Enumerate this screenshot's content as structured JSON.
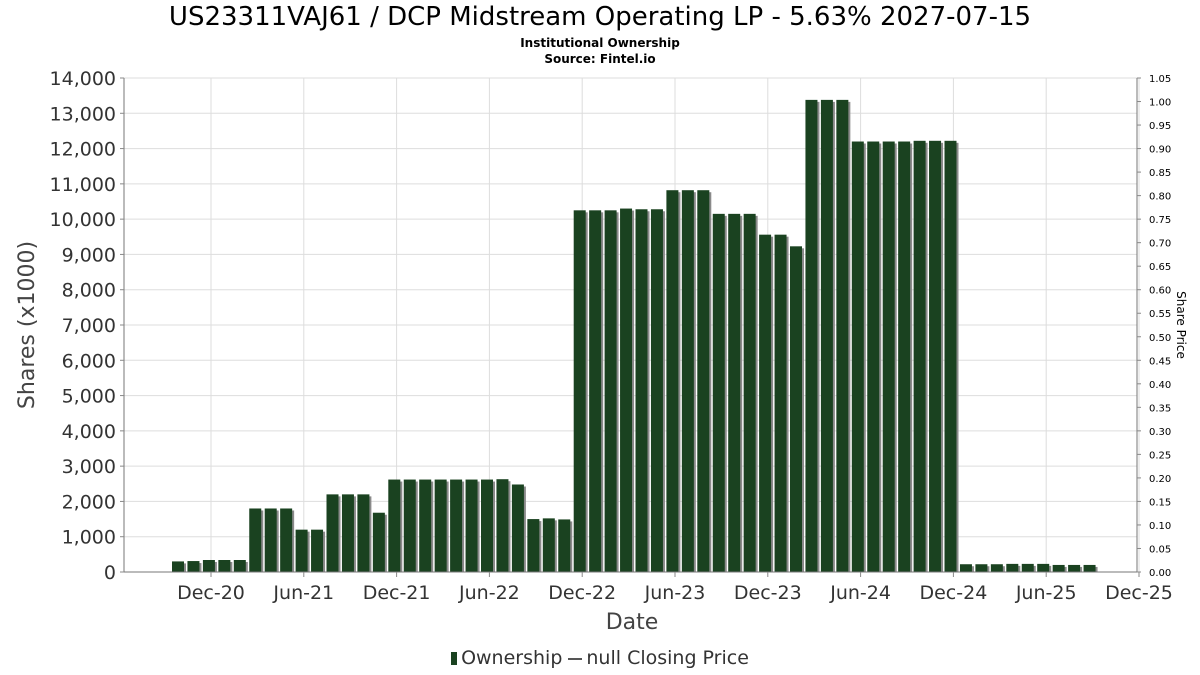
{
  "header": {
    "title": "US23311VAJ61 / DCP Midstream Operating LP - 5.63% 2027-07-15",
    "subtitle": "Institutional Ownership",
    "source": "Source: Fintel.io"
  },
  "legend": {
    "ownership_label": "Ownership",
    "price_label": "null Closing Price"
  },
  "colors": {
    "bar": "#1a4220",
    "bar_shadow": "#8a8a8a",
    "grid": "#dddddd"
  },
  "chart_data": {
    "type": "bar",
    "title": "US23311VAJ61 / DCP Midstream Operating LP - 5.63% 2027-07-15",
    "xlabel": "Date",
    "ylabel": "Shares (x1000)",
    "y2label": "Share Price",
    "ylim": [
      0,
      14000
    ],
    "y2lim": [
      0,
      1.05
    ],
    "yticks": [
      "0",
      "1,000",
      "2,000",
      "3,000",
      "4,000",
      "5,000",
      "6,000",
      "7,000",
      "8,000",
      "9,000",
      "10,000",
      "11,000",
      "12,000",
      "13,000",
      "14,000"
    ],
    "y2ticks": [
      "0.00",
      "0.05",
      "0.10",
      "0.15",
      "0.20",
      "0.25",
      "0.30",
      "0.35",
      "0.40",
      "0.45",
      "0.50",
      "0.55",
      "0.60",
      "0.65",
      "0.70",
      "0.75",
      "0.80",
      "0.85",
      "0.90",
      "0.95",
      "1.00",
      "1.05"
    ],
    "xticks": [
      "Dec-20",
      "Jun-21",
      "Dec-21",
      "Jun-22",
      "Dec-22",
      "Jun-23",
      "Dec-23",
      "Jun-24",
      "Dec-24",
      "Jun-25",
      "Dec-25"
    ],
    "grid": true,
    "legend_position": "bottom",
    "series": [
      {
        "name": "Ownership",
        "values": [
          300,
          310,
          340,
          340,
          340,
          1800,
          1800,
          1800,
          1200,
          1200,
          2200,
          2200,
          2200,
          1680,
          2620,
          2620,
          2620,
          2620,
          2620,
          2620,
          2620,
          2630,
          2480,
          1500,
          1520,
          1490,
          10250,
          10250,
          10250,
          10300,
          10280,
          10280,
          10820,
          10820,
          10820,
          10150,
          10150,
          10150,
          9560,
          9560,
          9230,
          13380,
          13380,
          13380,
          12200,
          12200,
          12200,
          12200,
          12220,
          12220,
          12220,
          220,
          220,
          220,
          230,
          230,
          230,
          200,
          200,
          200
        ]
      }
    ]
  },
  "x_axis_title": "Date",
  "y_axis_title": "Shares (x1000)",
  "y2_axis_title": "Share Price"
}
